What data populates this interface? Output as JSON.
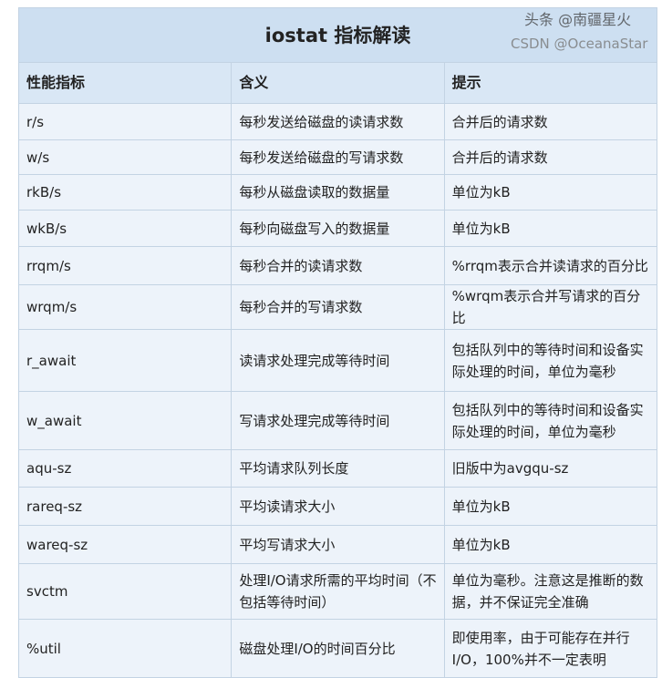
{
  "title": "iostat 指标解读",
  "columns": [
    "性能指标",
    "含义",
    "提示"
  ],
  "rows": [
    {
      "metric": "r/s",
      "meaning": "每秒发送给磁盘的读请求数",
      "hint": "合并后的请求数"
    },
    {
      "metric": "w/s",
      "meaning": "每秒发送给磁盘的写请求数",
      "hint": "合并后的请求数"
    },
    {
      "metric": "rkB/s",
      "meaning": "每秒从磁盘读取的数据量",
      "hint": "单位为kB"
    },
    {
      "metric": "wkB/s",
      "meaning": "每秒向磁盘写入的数据量",
      "hint": "单位为kB"
    },
    {
      "metric": "rrqm/s",
      "meaning": "每秒合并的读请求数",
      "hint": "%rrqm表示合并读请求的百分比"
    },
    {
      "metric": "wrqm/s",
      "meaning": "每秒合并的写请求数",
      "hint": "%wrqm表示合并写请求的百分比"
    },
    {
      "metric": "r_await",
      "meaning": "读请求处理完成等待时间",
      "hint": "包括队列中的等待时间和设备实际处理的时间，单位为毫秒"
    },
    {
      "metric": "w_await",
      "meaning": "写请求处理完成等待时间",
      "hint": "包括队列中的等待时间和设备实际处理的时间，单位为毫秒"
    },
    {
      "metric": "aqu-sz",
      "meaning": "平均请求队列长度",
      "hint": "旧版中为avgqu-sz"
    },
    {
      "metric": "rareq-sz",
      "meaning": "平均读请求大小",
      "hint": "单位为kB"
    },
    {
      "metric": "wareq-sz",
      "meaning": "平均写请求大小",
      "hint": "单位为kB"
    },
    {
      "metric": "svctm",
      "meaning": "处理I/O请求所需的平均时间（不包括等待时间）",
      "hint": "单位为毫秒。注意这是推断的数据，并不保证完全准确"
    },
    {
      "metric": "%util",
      "meaning": "磁盘处理I/O的时间百分比",
      "hint": "即使用率，由于可能存在并行I/O，100%并不一定表明"
    }
  ],
  "watermarks": [
    "头条 @南疆星火",
    "CSDN @OceanaStar"
  ]
}
